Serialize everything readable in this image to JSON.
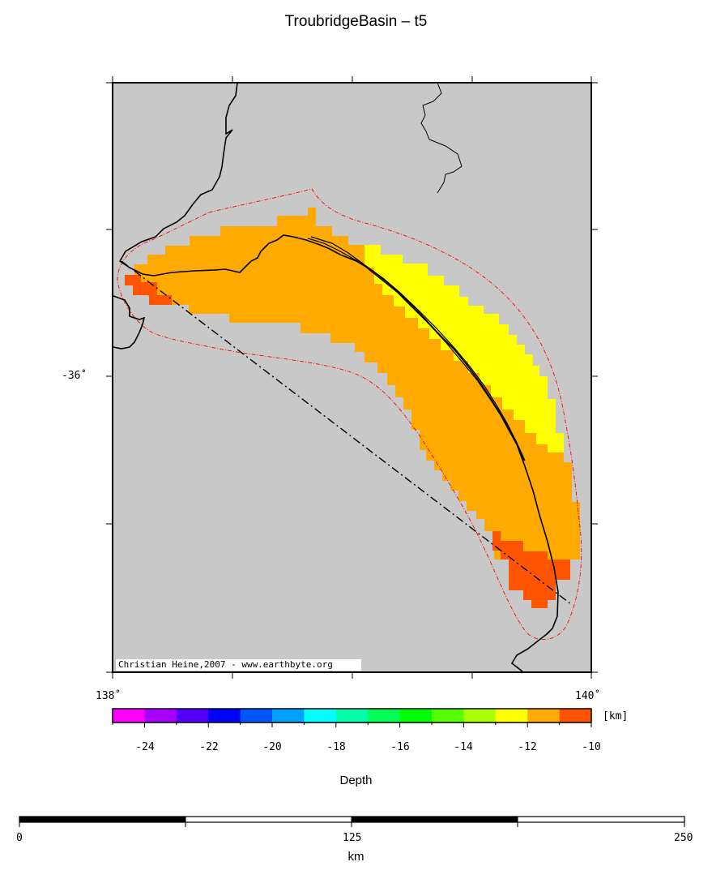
{
  "title": "TroubridgeBasin – t5",
  "credit": "Christian Heine,2007 - www.earthbyte.org",
  "axes": {
    "lat_tick_label": "-36˚",
    "lon_left_label": "138˚",
    "lon_right_label": "140˚"
  },
  "colorbar": {
    "title": "Depth",
    "unit": "[km]",
    "ticks": [
      "-24",
      "-22",
      "-20",
      "-18",
      "-16",
      "-14",
      "-12",
      "-10"
    ],
    "range": [
      -25,
      -10
    ],
    "colors": [
      "#ff00ff",
      "#aa00ff",
      "#5500ff",
      "#0000ff",
      "#0055ff",
      "#00a0ff",
      "#00ffff",
      "#00ffaa",
      "#00ff55",
      "#00ff00",
      "#55ff00",
      "#aaff00",
      "#ffff00",
      "#ffaa00",
      "#ff5500"
    ]
  },
  "scalebar": {
    "labels": [
      "0",
      "125",
      "250"
    ],
    "unit": "km"
  },
  "legend_colors": {
    "background": "#c8c8c8",
    "depth_11_12": "#ffaa00",
    "depth_12_13": "#ffff00",
    "depth_10_11": "#ff5500",
    "boundary": "#ff0000"
  }
}
